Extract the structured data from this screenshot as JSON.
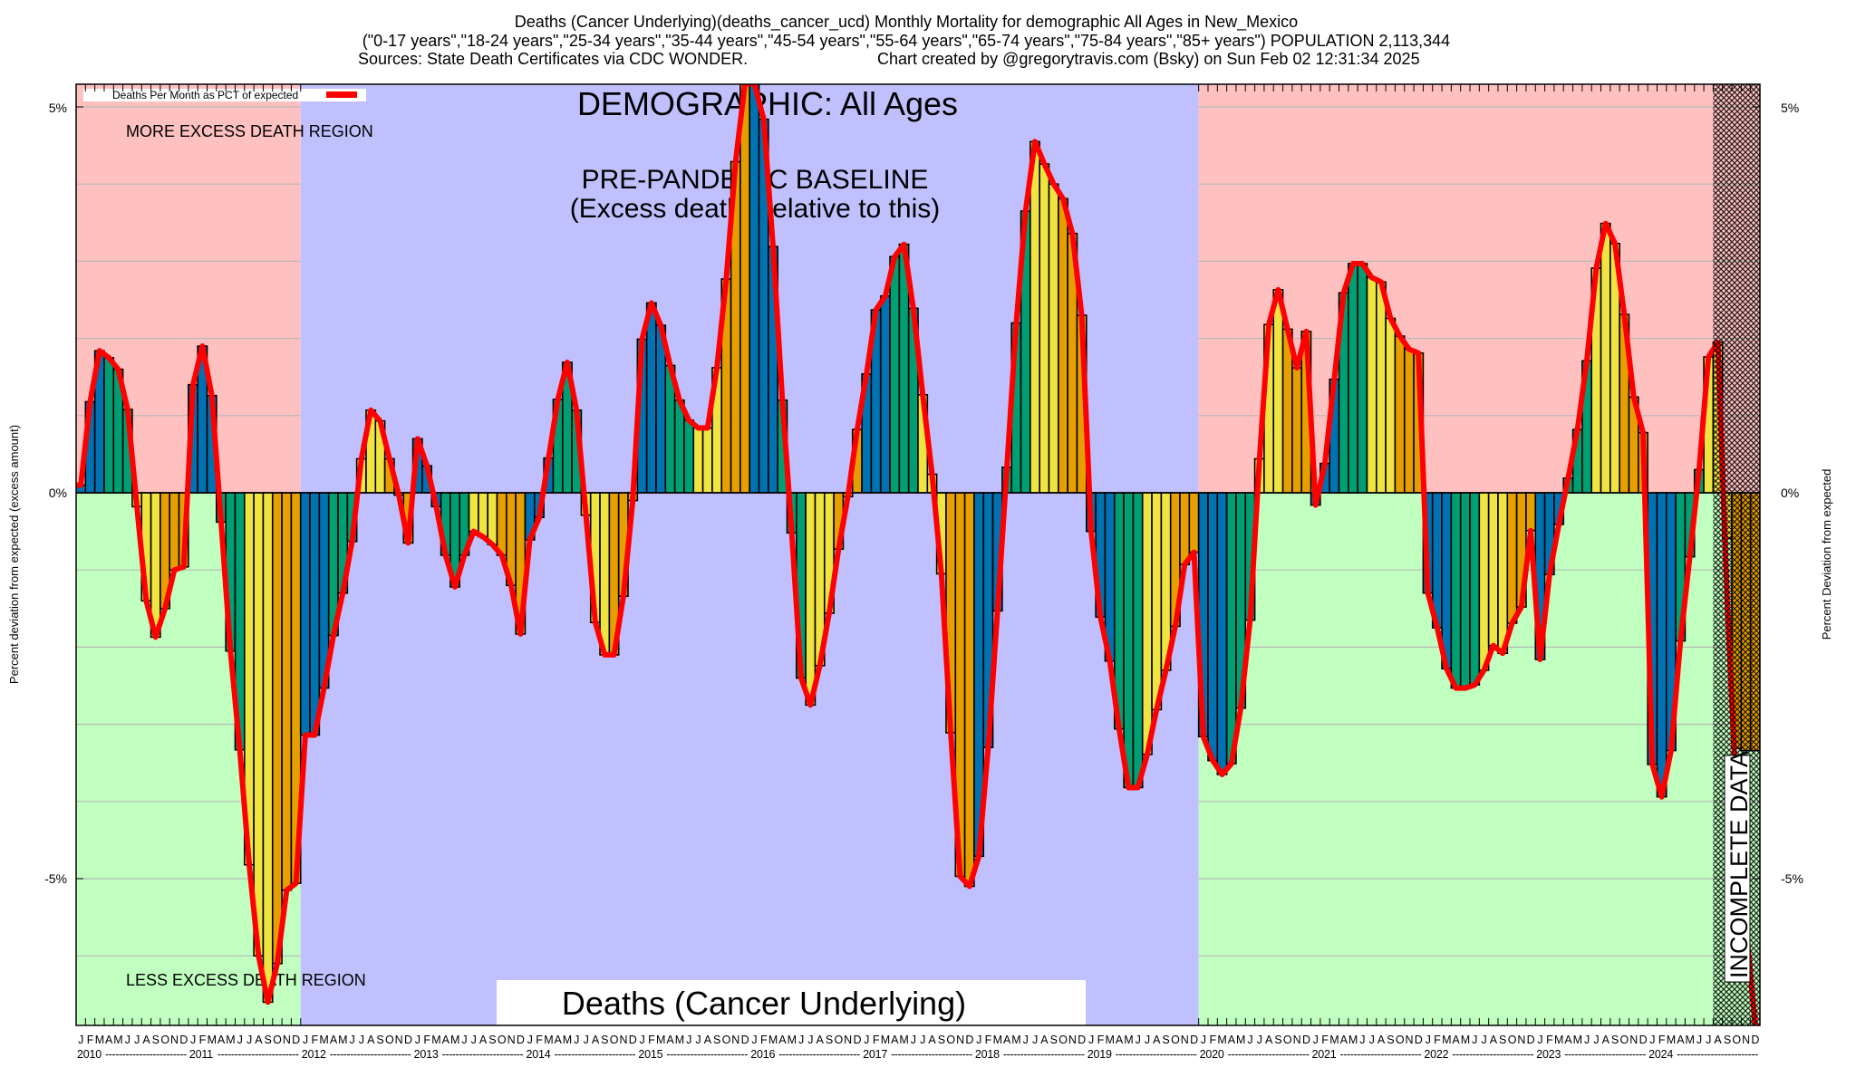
{
  "header": {
    "line1": "Deaths (Cancer Underlying)(deaths_cancer_ucd) Monthly Mortality for demographic All Ages in New_Mexico",
    "line2": "(\"0-17 years\",\"18-24 years\",\"25-34 years\",\"35-44 years\",\"45-54 years\",\"55-64 years\",\"65-74 years\",\"75-84 years\",\"85+ years\") POPULATION 2,113,344",
    "line3_left": "Sources: State Death Certificates via CDC WONDER.",
    "line3_right": "Chart created by @gregorytravis.com (Bsky) on Sun Feb 02 12:31:34 2025"
  },
  "annotations": {
    "demographic": "DEMOGRAPHIC: All Ages",
    "baseline_line1": "PRE-PANDEMIC BASELINE",
    "baseline_line2": "(Excess deaths relative to this)",
    "more_region": "MORE EXCESS DEATH REGION",
    "less_region": "LESS EXCESS DEATH REGION",
    "cause_label": "Deaths (Cancer Underlying)",
    "incomplete": "INCOMPLETE DATA"
  },
  "legend": {
    "label": "Deaths Per Month as PCT of expected",
    "color": "#ff0000"
  },
  "colors": {
    "excess_region": "#ffc0c0",
    "deficit_region": "#c0ffc0",
    "baseline_region": "#c0c0ff",
    "q1": "#0072b2",
    "q2": "#009e73",
    "q3": "#f0e442",
    "q4": "#e69f00",
    "line": "#ff0000",
    "gridline": "#b8b8b8"
  },
  "chart_data": {
    "type": "bar",
    "title": "Deaths (Cancer Underlying)(deaths_cancer_ucd) Monthly Mortality for demographic All Ages in New_Mexico",
    "xlabel": "",
    "ylabel": "Percent deviation from expected (excess amount)",
    "ylabel_right": "Percent Deviation from expected",
    "ylim": [
      -6.9,
      5.3
    ],
    "yticks": [
      -5,
      0,
      5
    ],
    "ytick_labels": [
      "-5%",
      "0%",
      "5%"
    ],
    "grid": "every 1%",
    "legend_position": "top-left",
    "x_start": "2010-01",
    "x_end": "2024-12",
    "month_letters": [
      "J",
      "F",
      "M",
      "A",
      "M",
      "J",
      "J",
      "A",
      "S",
      "O",
      "N",
      "D"
    ],
    "years": [
      "2010",
      "2011",
      "2012",
      "2013",
      "2014",
      "2015",
      "2016",
      "2017",
      "2018",
      "2019",
      "2020",
      "2021",
      "2022",
      "2023",
      "2024"
    ],
    "regions": [
      {
        "name": "pre-baseline",
        "from": "2010-01",
        "to": "2011-12",
        "kind": "excess/deficit"
      },
      {
        "name": "pre-pandemic baseline",
        "from": "2012-01",
        "to": "2019-12",
        "kind": "baseline"
      },
      {
        "name": "pandemic and after",
        "from": "2020-01",
        "to": "2024-12",
        "kind": "excess/deficit"
      },
      {
        "name": "incomplete data",
        "from": "2024-08",
        "to": "2024-12",
        "kind": "hatched"
      }
    ],
    "series": [
      {
        "name": "Monthly deviation (bars, colored by quarter)",
        "values": [
          0.1,
          1.18,
          1.84,
          1.75,
          1.6,
          1.08,
          -0.18,
          -1.4,
          -1.87,
          -1.5,
          -1.0,
          -0.96,
          1.4,
          1.9,
          1.26,
          -0.38,
          -2.05,
          -3.33,
          -4.82,
          -6.0,
          -6.6,
          -6.1,
          -5.15,
          -5.06,
          -3.14,
          -3.14,
          -2.53,
          -1.85,
          -1.3,
          -0.63,
          0.44,
          1.07,
          0.93,
          0.44,
          -0.03,
          -0.65,
          0.7,
          0.35,
          -0.18,
          -0.81,
          -1.22,
          -0.81,
          -0.5,
          -0.57,
          -0.67,
          -0.81,
          -1.2,
          -1.83,
          -0.61,
          -0.32,
          0.45,
          1.21,
          1.69,
          1.07,
          -0.29,
          -1.68,
          -2.1,
          -2.1,
          -1.34,
          -0.1,
          1.99,
          2.46,
          2.17,
          1.65,
          1.2,
          0.94,
          0.84,
          0.84,
          1.62,
          2.77,
          4.29,
          5.3,
          5.3,
          4.84,
          3.19,
          1.2,
          -0.52,
          -2.4,
          -2.75,
          -2.24,
          -1.56,
          -0.73,
          -0.05,
          0.82,
          1.54,
          2.37,
          2.55,
          3.06,
          3.22,
          2.39,
          1.27,
          0.24,
          -1.05,
          -3.11,
          -4.97,
          -5.1,
          -4.71,
          -3.3,
          -1.53,
          0.33,
          2.2,
          3.65,
          4.55,
          4.26,
          4.0,
          3.81,
          3.36,
          2.3,
          -0.5,
          -1.61,
          -2.18,
          -3.06,
          -3.82,
          -3.82,
          -3.39,
          -2.81,
          -2.3,
          -1.73,
          -0.93,
          -0.77,
          -3.16,
          -3.47,
          -3.65,
          -3.51,
          -2.79,
          -1.65,
          0.44,
          2.18,
          2.63,
          2.12,
          1.62,
          2.09,
          -0.16,
          0.38,
          1.47,
          2.59,
          2.97,
          2.97,
          2.79,
          2.73,
          2.26,
          2.03,
          1.86,
          1.81,
          -1.3,
          -1.75,
          -2.28,
          -2.53,
          -2.53,
          -2.49,
          -2.3,
          -1.98,
          -2.08,
          -1.69,
          -1.48,
          -0.49,
          -2.16,
          -1.06,
          -0.41,
          0.19,
          0.82,
          1.71,
          2.91,
          3.49,
          3.23,
          2.31,
          1.24,
          0.78,
          -3.52,
          -3.94,
          -3.34,
          -1.92,
          -0.83,
          0.3,
          1.76,
          1.95,
          -0.59,
          -3.31,
          -3.34,
          -3.34
        ]
      },
      {
        "name": "Deaths Per Month as PCT of expected",
        "values": [
          0.1,
          1.18,
          1.84,
          1.75,
          1.6,
          1.08,
          -0.18,
          -1.4,
          -1.87,
          -1.5,
          -1.0,
          -0.96,
          1.4,
          1.9,
          1.26,
          -0.38,
          -2.05,
          -3.33,
          -4.82,
          -6.0,
          -6.6,
          -6.1,
          -5.15,
          -5.06,
          -3.14,
          -3.14,
          -2.53,
          -1.85,
          -1.3,
          -0.63,
          0.44,
          1.07,
          0.93,
          0.44,
          -0.03,
          -0.65,
          0.7,
          0.35,
          -0.18,
          -0.81,
          -1.22,
          -0.81,
          -0.5,
          -0.57,
          -0.67,
          -0.81,
          -1.2,
          -1.83,
          -0.61,
          -0.32,
          0.45,
          1.21,
          1.69,
          1.07,
          -0.29,
          -1.68,
          -2.1,
          -2.1,
          -1.34,
          -0.1,
          1.99,
          2.46,
          2.17,
          1.65,
          1.2,
          0.94,
          0.84,
          0.84,
          1.62,
          2.77,
          4.29,
          5.3,
          5.3,
          4.84,
          3.19,
          1.2,
          -0.52,
          -2.4,
          -2.75,
          -2.24,
          -1.56,
          -0.73,
          -0.05,
          0.82,
          1.54,
          2.37,
          2.55,
          3.06,
          3.22,
          2.39,
          1.27,
          0.24,
          -1.05,
          -3.11,
          -4.97,
          -5.1,
          -4.71,
          -3.3,
          -1.53,
          0.33,
          2.2,
          3.65,
          4.55,
          4.26,
          4.0,
          3.81,
          3.36,
          2.3,
          -0.5,
          -1.61,
          -2.18,
          -3.06,
          -3.82,
          -3.82,
          -3.39,
          -2.81,
          -2.3,
          -1.73,
          -0.93,
          -0.77,
          -3.16,
          -3.47,
          -3.65,
          -3.51,
          -2.79,
          -1.65,
          0.44,
          2.18,
          2.63,
          2.12,
          1.62,
          2.09,
          -0.16,
          0.38,
          1.47,
          2.59,
          2.97,
          2.97,
          2.79,
          2.73,
          2.26,
          2.03,
          1.86,
          1.81,
          -1.3,
          -1.75,
          -2.28,
          -2.53,
          -2.53,
          -2.49,
          -2.3,
          -1.98,
          -2.08,
          -1.69,
          -1.48,
          -0.49,
          -2.16,
          -1.06,
          -0.41,
          0.19,
          0.82,
          1.71,
          2.91,
          3.49,
          3.23,
          2.31,
          1.24,
          0.78,
          -3.52,
          -3.94,
          -3.34,
          -1.92,
          -0.83,
          0.3,
          1.76,
          1.95,
          -1.4,
          -4.0,
          -5.6,
          -6.9
        ]
      }
    ]
  }
}
